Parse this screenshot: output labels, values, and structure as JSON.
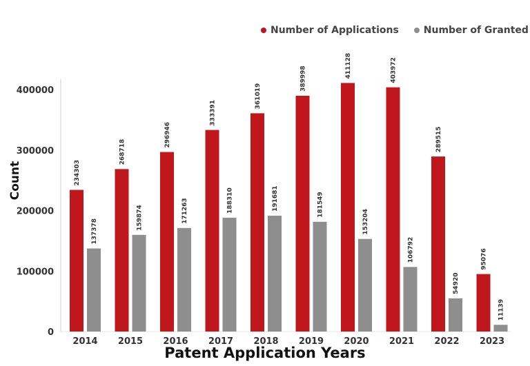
{
  "chart_data": {
    "type": "bar",
    "title": "",
    "xlabel": "Patent Application Years",
    "ylabel": "Count",
    "categories": [
      "2014",
      "2015",
      "2016",
      "2017",
      "2018",
      "2019",
      "2020",
      "2021",
      "2022",
      "2023"
    ],
    "series": [
      {
        "name": "Number of Applications",
        "color": "#c0171c",
        "values": [
          234303,
          268718,
          296946,
          333391,
          361019,
          389998,
          411128,
          403972,
          289515,
          95076
        ]
      },
      {
        "name": "Number of Granted",
        "color": "#8e8e8e",
        "values": [
          137378,
          159874,
          171263,
          188310,
          191681,
          181549,
          153204,
          106792,
          54920,
          11139
        ]
      }
    ],
    "ylim": [
      0,
      415000
    ],
    "yticks": [
      0,
      100000,
      200000,
      300000,
      400000
    ],
    "grid": false,
    "legend_position": "top-right"
  }
}
